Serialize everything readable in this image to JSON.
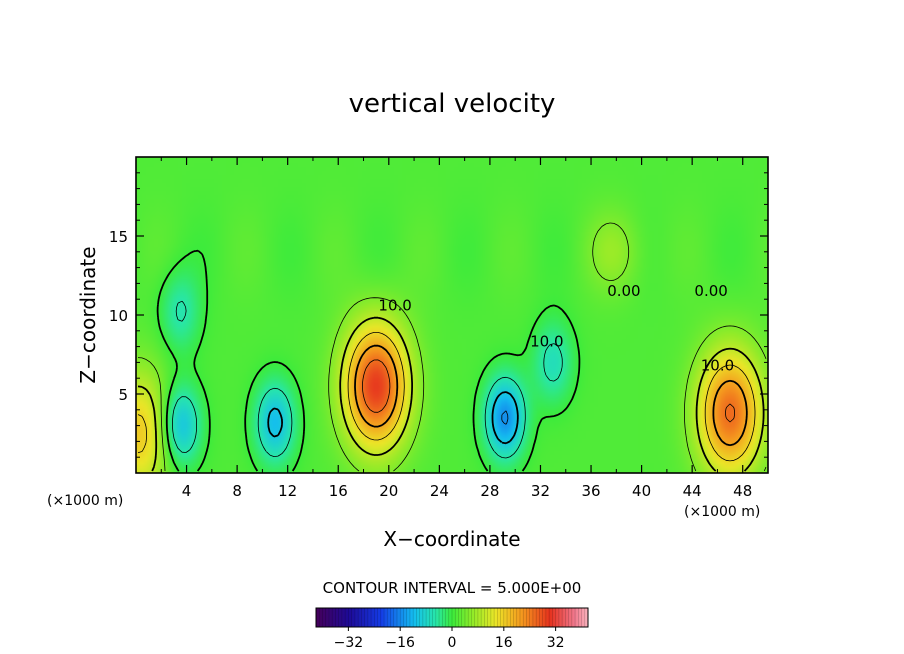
{
  "chart_data": {
    "type": "heatmap",
    "title": "vertical velocity",
    "xlabel": "X−coordinate",
    "ylabel": "Z−coordinate",
    "x_unit_left": "(×1000 m)",
    "x_unit_right": "(×1000 m)",
    "xlim": [
      0,
      50
    ],
    "ylim": [
      0,
      20
    ],
    "x_ticks": [
      "4",
      "8",
      "12",
      "16",
      "20",
      "24",
      "28",
      "32",
      "36",
      "40",
      "44",
      "48"
    ],
    "x_tick_values": [
      4,
      8,
      12,
      16,
      20,
      24,
      28,
      32,
      36,
      40,
      44,
      48
    ],
    "y_ticks": [
      "5",
      "10",
      "15"
    ],
    "y_tick_values": [
      5,
      10,
      15
    ],
    "contour_interval_text": "CONTOUR INTERVAL = 5.000E+00",
    "contour_labels": [
      {
        "text": "10.0",
        "x": 20.5,
        "y": 10.3
      },
      {
        "text": "10.0",
        "x": 32.5,
        "y": 8.0
      },
      {
        "text": "0.00",
        "x": 38.6,
        "y": 11.2
      },
      {
        "text": "0.00",
        "x": 45.5,
        "y": 11.2
      },
      {
        "text": "10.0",
        "x": 46.0,
        "y": 6.5
      }
    ],
    "colorbar": {
      "range": [
        -42,
        42
      ],
      "ticks": [
        "−32",
        "−16",
        "0",
        "16",
        "32"
      ],
      "tick_values": [
        -32,
        -16,
        0,
        16,
        32
      ]
    },
    "features": [
      {
        "name": "updraft",
        "x": 19.0,
        "z": 5.5,
        "peak": 28
      },
      {
        "name": "updraft",
        "x": 47.0,
        "z": 3.8,
        "peak": 24
      },
      {
        "name": "updraft",
        "x": 0.3,
        "z": 2.5,
        "peak": 15
      },
      {
        "name": "downdraft",
        "x": 3.5,
        "z": 3.0,
        "peak": -14
      },
      {
        "name": "downdraft",
        "x": 11.0,
        "z": 3.2,
        "peak": -13
      },
      {
        "name": "downdraft",
        "x": 29.2,
        "z": 3.5,
        "peak": -17
      },
      {
        "name": "downdraft",
        "x": 33.0,
        "z": 7.0,
        "peak": -8
      },
      {
        "name": "downdraft",
        "x": 3.5,
        "z": 10.2,
        "peak": -7
      },
      {
        "name": "weak-updraft",
        "x": 38.0,
        "z": 14.0,
        "peak": 5
      }
    ]
  }
}
